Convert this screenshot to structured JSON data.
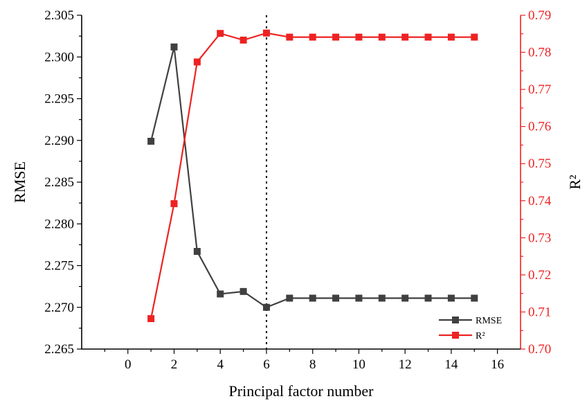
{
  "chart_data": {
    "type": "line",
    "xlabel": "Principal factor number",
    "ylabel_left": "RMSE",
    "ylabel_right": "R²",
    "xlim": [
      -2,
      17
    ],
    "xticks": [
      0,
      2,
      4,
      6,
      8,
      10,
      12,
      14,
      16
    ],
    "x_minor_ticks": [
      -1,
      1,
      3,
      5,
      7,
      9,
      11,
      13,
      15
    ],
    "ylim_left": [
      2.265,
      2.305
    ],
    "yticks_left": [
      2.265,
      2.27,
      2.275,
      2.28,
      2.285,
      2.29,
      2.295,
      2.3,
      2.305
    ],
    "ylim_right": [
      0.7,
      0.79
    ],
    "yticks_right": [
      0.7,
      0.71,
      0.72,
      0.73,
      0.74,
      0.75,
      0.76,
      0.77,
      0.78,
      0.79
    ],
    "vertical_reference_line_x": 6,
    "series": [
      {
        "name": "RMSE",
        "axis": "left",
        "color": "#404040",
        "x": [
          1,
          2,
          3,
          4,
          5,
          6,
          7,
          8,
          9,
          10,
          11,
          12,
          13,
          14,
          15
        ],
        "y": [
          2.2899,
          2.3012,
          2.2767,
          2.2716,
          2.2719,
          2.27,
          2.2711,
          2.2711,
          2.2711,
          2.2711,
          2.2711,
          2.2711,
          2.2711,
          2.2711,
          2.2711
        ]
      },
      {
        "name": "R²",
        "axis": "right",
        "color": "#ee2222",
        "x": [
          1,
          2,
          3,
          4,
          5,
          6,
          7,
          8,
          9,
          10,
          11,
          12,
          13,
          14,
          15
        ],
        "y": [
          0.7082,
          0.7392,
          0.7774,
          0.7851,
          0.7833,
          0.7852,
          0.7841,
          0.7841,
          0.7841,
          0.7841,
          0.7841,
          0.7841,
          0.7841,
          0.7841,
          0.7841
        ]
      }
    ],
    "legend": {
      "position": "bottom-right"
    },
    "grid": false
  },
  "colors": {
    "left_axis": "#000000",
    "right_axis": "#ee2222",
    "reference_line": "#000000"
  }
}
